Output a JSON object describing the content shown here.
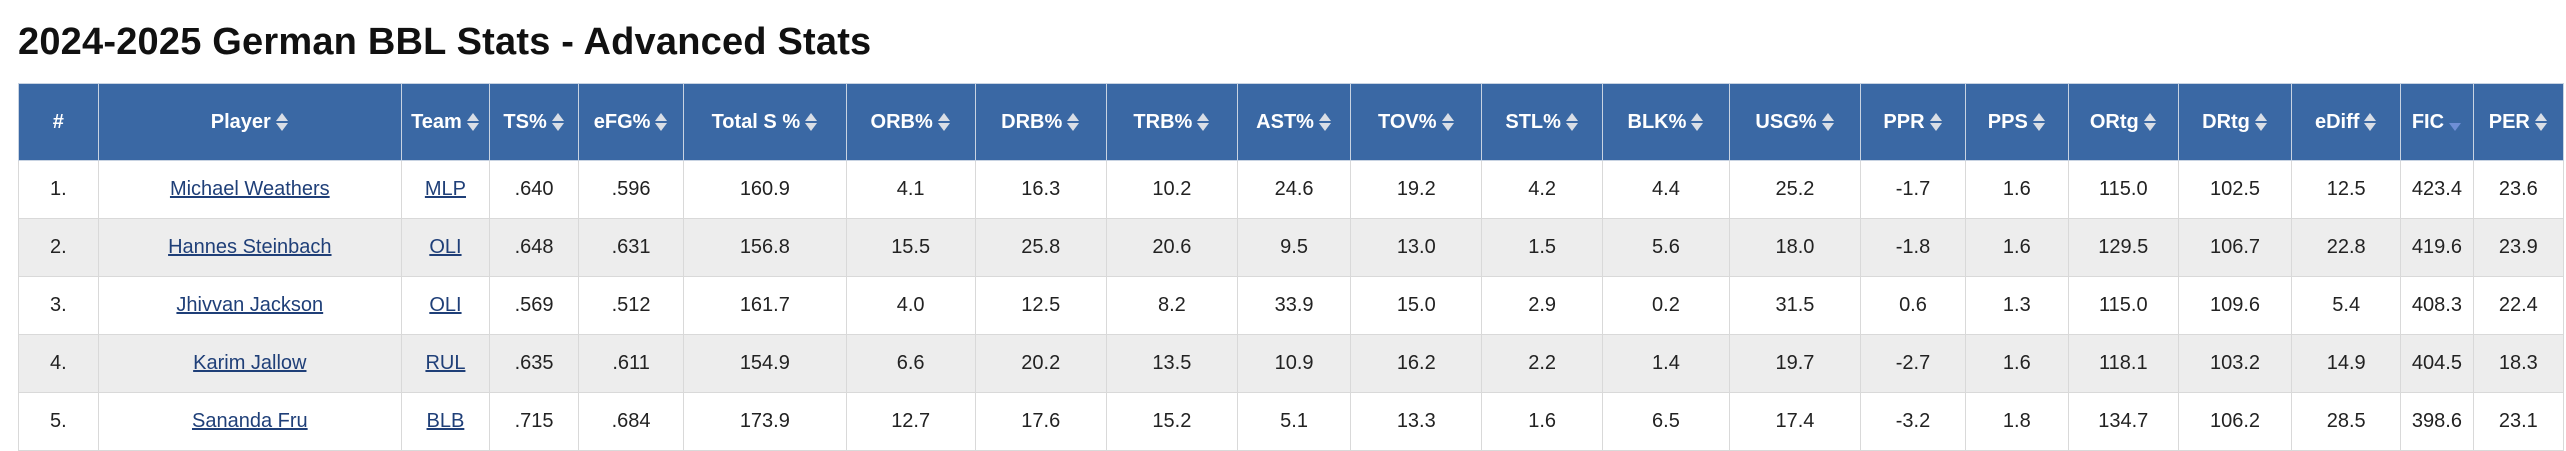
{
  "page": {
    "title": "2024-2025 German BBL Stats - Advanced Stats"
  },
  "colors": {
    "header_bg": "#3a68a4",
    "header_text": "#ffffff",
    "link": "#1f3f78",
    "row_alt": "#ededed",
    "sort_active": "#6f8fd6"
  },
  "table": {
    "sorted_by": "FIC",
    "sort_direction": "descending",
    "columns": [
      {
        "key": "rank",
        "label": "#",
        "sortable": false
      },
      {
        "key": "player",
        "label": "Player",
        "sortable": true
      },
      {
        "key": "team",
        "label": "Team",
        "sortable": true
      },
      {
        "key": "ts",
        "label": "TS%",
        "sortable": true
      },
      {
        "key": "efg",
        "label": "eFG%",
        "sortable": true
      },
      {
        "key": "total_s",
        "label": "Total S %",
        "sortable": true
      },
      {
        "key": "orb",
        "label": "ORB%",
        "sortable": true
      },
      {
        "key": "drb",
        "label": "DRB%",
        "sortable": true
      },
      {
        "key": "trb",
        "label": "TRB%",
        "sortable": true
      },
      {
        "key": "ast",
        "label": "AST%",
        "sortable": true
      },
      {
        "key": "tov",
        "label": "TOV%",
        "sortable": true
      },
      {
        "key": "stl",
        "label": "STL%",
        "sortable": true
      },
      {
        "key": "blk",
        "label": "BLK%",
        "sortable": true
      },
      {
        "key": "usg",
        "label": "USG%",
        "sortable": true
      },
      {
        "key": "ppr",
        "label": "PPR",
        "sortable": true
      },
      {
        "key": "pps",
        "label": "PPS",
        "sortable": true
      },
      {
        "key": "ortg",
        "label": "ORtg",
        "sortable": true
      },
      {
        "key": "drtg",
        "label": "DRtg",
        "sortable": true
      },
      {
        "key": "ediff",
        "label": "eDiff",
        "sortable": true
      },
      {
        "key": "fic",
        "label": "FIC",
        "sortable": true
      },
      {
        "key": "per",
        "label": "PER",
        "sortable": true
      }
    ],
    "rows": [
      {
        "rank": "1.",
        "player": "Michael Weathers",
        "team": "MLP",
        "ts": ".640",
        "efg": ".596",
        "total_s": "160.9",
        "orb": "4.1",
        "drb": "16.3",
        "trb": "10.2",
        "ast": "24.6",
        "tov": "19.2",
        "stl": "4.2",
        "blk": "4.4",
        "usg": "25.2",
        "ppr": "-1.7",
        "pps": "1.6",
        "ortg": "115.0",
        "drtg": "102.5",
        "ediff": "12.5",
        "fic": "423.4",
        "per": "23.6"
      },
      {
        "rank": "2.",
        "player": "Hannes Steinbach",
        "team": "OLI",
        "ts": ".648",
        "efg": ".631",
        "total_s": "156.8",
        "orb": "15.5",
        "drb": "25.8",
        "trb": "20.6",
        "ast": "9.5",
        "tov": "13.0",
        "stl": "1.5",
        "blk": "5.6",
        "usg": "18.0",
        "ppr": "-1.8",
        "pps": "1.6",
        "ortg": "129.5",
        "drtg": "106.7",
        "ediff": "22.8",
        "fic": "419.6",
        "per": "23.9"
      },
      {
        "rank": "3.",
        "player": "Jhivvan Jackson",
        "team": "OLI",
        "ts": ".569",
        "efg": ".512",
        "total_s": "161.7",
        "orb": "4.0",
        "drb": "12.5",
        "trb": "8.2",
        "ast": "33.9",
        "tov": "15.0",
        "stl": "2.9",
        "blk": "0.2",
        "usg": "31.5",
        "ppr": "0.6",
        "pps": "1.3",
        "ortg": "115.0",
        "drtg": "109.6",
        "ediff": "5.4",
        "fic": "408.3",
        "per": "22.4"
      },
      {
        "rank": "4.",
        "player": "Karim Jallow",
        "team": "RUL",
        "ts": ".635",
        "efg": ".611",
        "total_s": "154.9",
        "orb": "6.6",
        "drb": "20.2",
        "trb": "13.5",
        "ast": "10.9",
        "tov": "16.2",
        "stl": "2.2",
        "blk": "1.4",
        "usg": "19.7",
        "ppr": "-2.7",
        "pps": "1.6",
        "ortg": "118.1",
        "drtg": "103.2",
        "ediff": "14.9",
        "fic": "404.5",
        "per": "18.3"
      },
      {
        "rank": "5.",
        "player": "Sananda Fru",
        "team": "BLB",
        "ts": ".715",
        "efg": ".684",
        "total_s": "173.9",
        "orb": "12.7",
        "drb": "17.6",
        "trb": "15.2",
        "ast": "5.1",
        "tov": "13.3",
        "stl": "1.6",
        "blk": "6.5",
        "usg": "17.4",
        "ppr": "-3.2",
        "pps": "1.8",
        "ortg": "134.7",
        "drtg": "106.2",
        "ediff": "28.5",
        "fic": "398.6",
        "per": "23.1"
      }
    ]
  }
}
